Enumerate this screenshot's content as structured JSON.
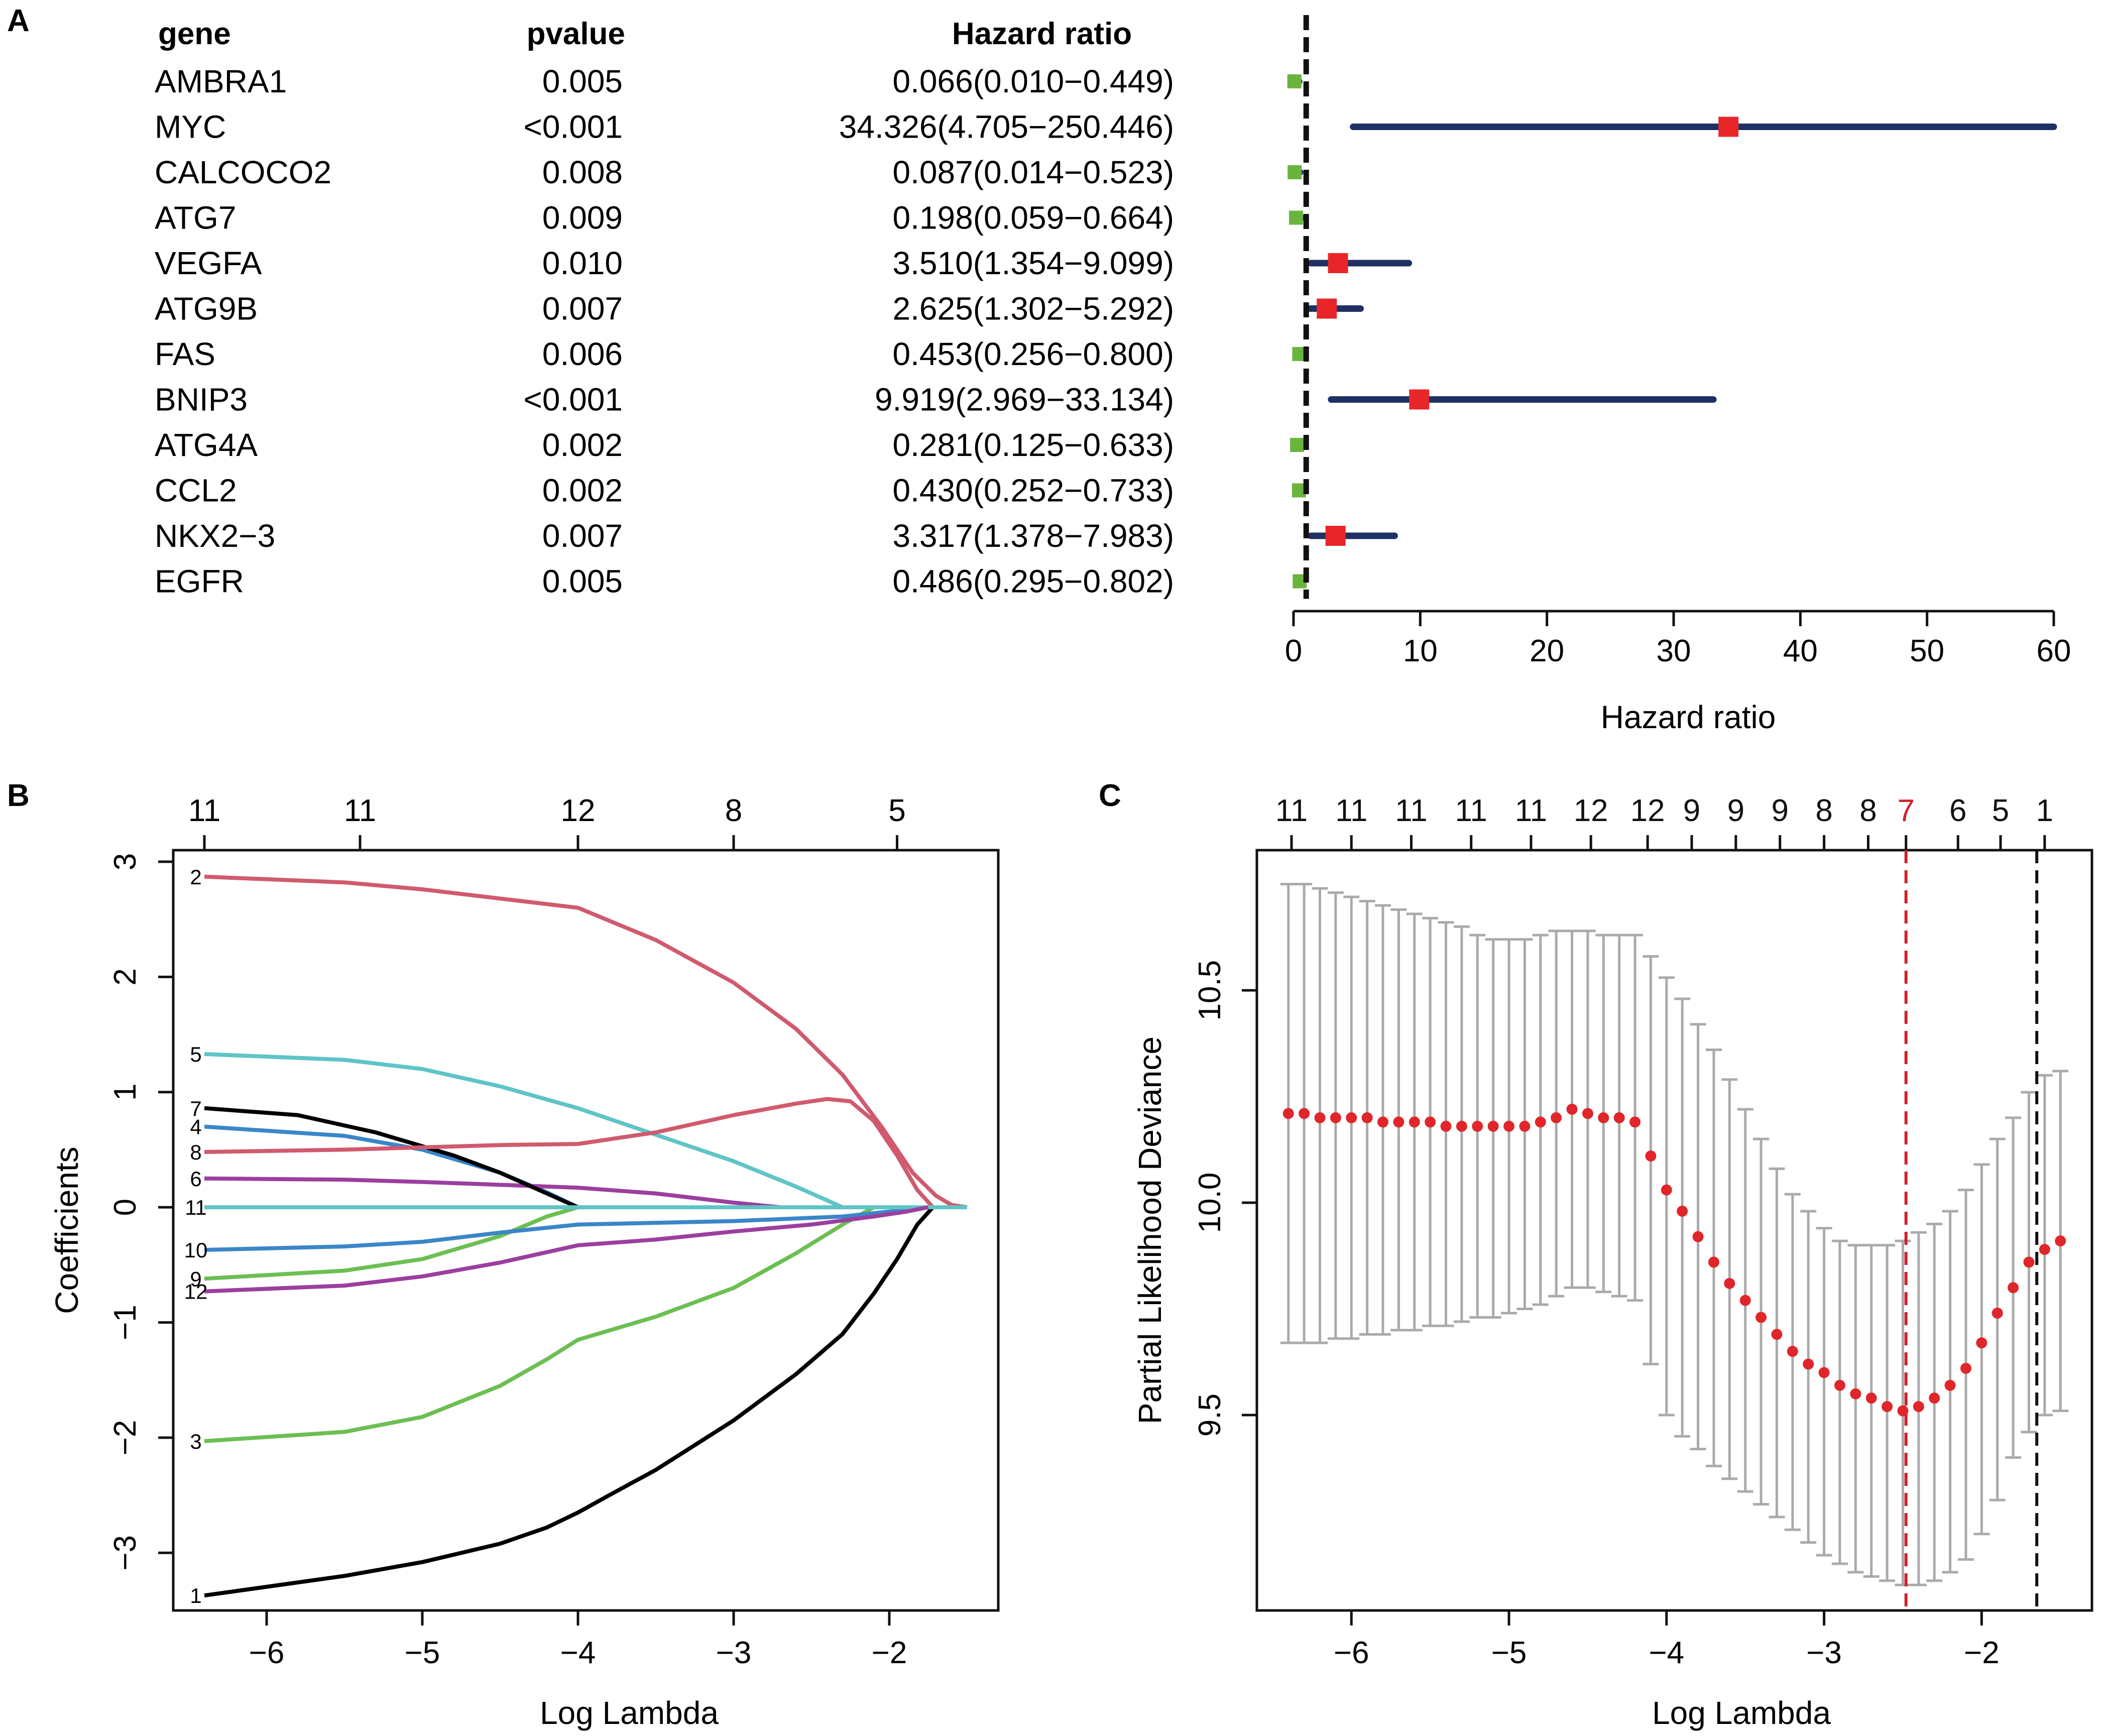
{
  "panels": {
    "a": "A",
    "b": "B",
    "c": "C"
  },
  "forest": {
    "headers": {
      "gene": "gene",
      "pvalue": "pvalue",
      "hr": "Hazard ratio"
    },
    "rows": [
      {
        "gene": "AMBRA1",
        "pvalue": "0.005",
        "hr_text": "0.066(0.010−0.449)",
        "hr": 0.066,
        "lo": 0.01,
        "hi": 0.449
      },
      {
        "gene": "MYC",
        "pvalue": "<0.001",
        "hr_text": "34.326(4.705−250.446)",
        "hr": 34.326,
        "lo": 4.705,
        "hi": 250.446
      },
      {
        "gene": "CALCOCO2",
        "pvalue": "0.008",
        "hr_text": "0.087(0.014−0.523)",
        "hr": 0.087,
        "lo": 0.014,
        "hi": 0.523
      },
      {
        "gene": "ATG7",
        "pvalue": "0.009",
        "hr_text": "0.198(0.059−0.664)",
        "hr": 0.198,
        "lo": 0.059,
        "hi": 0.664
      },
      {
        "gene": "VEGFA",
        "pvalue": "0.010",
        "hr_text": "3.510(1.354−9.099)",
        "hr": 3.51,
        "lo": 1.354,
        "hi": 9.099
      },
      {
        "gene": "ATG9B",
        "pvalue": "0.007",
        "hr_text": "2.625(1.302−5.292)",
        "hr": 2.625,
        "lo": 1.302,
        "hi": 5.292
      },
      {
        "gene": "FAS",
        "pvalue": "0.006",
        "hr_text": "0.453(0.256−0.800)",
        "hr": 0.453,
        "lo": 0.256,
        "hi": 0.8
      },
      {
        "gene": "BNIP3",
        "pvalue": "<0.001",
        "hr_text": "9.919(2.969−33.134)",
        "hr": 9.919,
        "lo": 2.969,
        "hi": 33.134
      },
      {
        "gene": "ATG4A",
        "pvalue": "0.002",
        "hr_text": "0.281(0.125−0.633)",
        "hr": 0.281,
        "lo": 0.125,
        "hi": 0.633
      },
      {
        "gene": "CCL2",
        "pvalue": "0.002",
        "hr_text": "0.430(0.252−0.733)",
        "hr": 0.43,
        "lo": 0.252,
        "hi": 0.733
      },
      {
        "gene": "NKX2−3",
        "pvalue": "0.007",
        "hr_text": "3.317(1.378−7.983)",
        "hr": 3.317,
        "lo": 1.378,
        "hi": 7.983
      },
      {
        "gene": "EGFR",
        "pvalue": "0.005",
        "hr_text": "0.486(0.295−0.802)",
        "hr": 0.486,
        "lo": 0.295,
        "hi": 0.802
      }
    ]
  },
  "chart_data": [
    {
      "type": "forest",
      "xlabel": "Hazard ratio",
      "xlim": [
        0,
        60
      ],
      "xticks": [
        0,
        10,
        20,
        30,
        40,
        50,
        60
      ],
      "reference_line": 1,
      "colors": {
        "risk": "#e8262a",
        "protective": "#6ab43e",
        "ci": "#1f3063",
        "ref": "#111111"
      }
    },
    {
      "type": "line",
      "xlabel": "Log Lambda",
      "ylabel": "Coefficients",
      "xlim": [
        -6.6,
        -1.3
      ],
      "ylim": [
        -3.5,
        3.1
      ],
      "xticks": [
        -6,
        -5,
        -4,
        -3,
        -2
      ],
      "yticks": [
        -3,
        -2,
        -1,
        0,
        1,
        2,
        3
      ],
      "top_axis": {
        "positions": [
          -6.4,
          -5.4,
          -4.0,
          -3.0,
          -1.95
        ],
        "labels": [
          "11",
          "11",
          "12",
          "8",
          "5"
        ]
      },
      "series": [
        {
          "name": "1",
          "color": "#000000",
          "points": [
            [
              -6.4,
              -3.37
            ],
            [
              -5.5,
              -3.2
            ],
            [
              -5.0,
              -3.08
            ],
            [
              -4.5,
              -2.92
            ],
            [
              -4.2,
              -2.78
            ],
            [
              -4.0,
              -2.65
            ],
            [
              -3.8,
              -2.5
            ],
            [
              -3.5,
              -2.28
            ],
            [
              -3.0,
              -1.85
            ],
            [
              -2.6,
              -1.45
            ],
            [
              -2.3,
              -1.1
            ],
            [
              -2.1,
              -0.75
            ],
            [
              -1.95,
              -0.45
            ],
            [
              -1.82,
              -0.15
            ],
            [
              -1.72,
              0
            ]
          ]
        },
        {
          "name": "2",
          "color": "#d05a6e",
          "points": [
            [
              -6.4,
              2.87
            ],
            [
              -5.5,
              2.82
            ],
            [
              -5.0,
              2.76
            ],
            [
              -4.5,
              2.68
            ],
            [
              -4.0,
              2.6
            ],
            [
              -3.5,
              2.32
            ],
            [
              -3.0,
              1.95
            ],
            [
              -2.6,
              1.55
            ],
            [
              -2.3,
              1.15
            ],
            [
              -2.05,
              0.7
            ],
            [
              -1.85,
              0.3
            ],
            [
              -1.7,
              0.1
            ],
            [
              -1.6,
              0.02
            ],
            [
              -1.5,
              0
            ]
          ]
        },
        {
          "name": "3",
          "color": "#6cbf52",
          "points": [
            [
              -6.4,
              -2.03
            ],
            [
              -5.5,
              -1.95
            ],
            [
              -5.0,
              -1.82
            ],
            [
              -4.5,
              -1.55
            ],
            [
              -4.2,
              -1.32
            ],
            [
              -4.0,
              -1.15
            ],
            [
              -3.5,
              -0.95
            ],
            [
              -3.0,
              -0.7
            ],
            [
              -2.6,
              -0.4
            ],
            [
              -2.3,
              -0.15
            ],
            [
              -2.1,
              0
            ]
          ]
        },
        {
          "name": "4",
          "color": "#3a86c8",
          "points": [
            [
              -6.4,
              0.7
            ],
            [
              -5.5,
              0.62
            ],
            [
              -5.0,
              0.5
            ],
            [
              -4.5,
              0.3
            ],
            [
              -4.2,
              0.13
            ],
            [
              -4.0,
              0
            ]
          ]
        },
        {
          "name": "5",
          "color": "#5fc4c6",
          "points": [
            [
              -6.4,
              1.33
            ],
            [
              -5.5,
              1.28
            ],
            [
              -5.0,
              1.2
            ],
            [
              -4.5,
              1.05
            ],
            [
              -4.0,
              0.86
            ],
            [
              -3.5,
              0.63
            ],
            [
              -3.0,
              0.4
            ],
            [
              -2.6,
              0.18
            ],
            [
              -2.3,
              0
            ]
          ]
        },
        {
          "name": "6",
          "color": "#9b3f9f",
          "points": [
            [
              -6.4,
              0.25
            ],
            [
              -5.5,
              0.24
            ],
            [
              -5.0,
              0.22
            ],
            [
              -4.0,
              0.17
            ],
            [
              -3.5,
              0.12
            ],
            [
              -3.0,
              0.04
            ],
            [
              -2.7,
              0
            ]
          ]
        },
        {
          "name": "7",
          "color": "#000000",
          "points": [
            [
              -6.4,
              0.86
            ],
            [
              -5.8,
              0.8
            ],
            [
              -5.3,
              0.65
            ],
            [
              -4.8,
              0.45
            ],
            [
              -4.5,
              0.3
            ],
            [
              -4.2,
              0.12
            ],
            [
              -4.0,
              0
            ]
          ]
        },
        {
          "name": "8",
          "color": "#d05a6e",
          "points": [
            [
              -6.4,
              0.48
            ],
            [
              -5.5,
              0.5
            ],
            [
              -5.0,
              0.52
            ],
            [
              -4.5,
              0.54
            ],
            [
              -4.0,
              0.55
            ],
            [
              -3.5,
              0.65
            ],
            [
              -3.0,
              0.8
            ],
            [
              -2.6,
              0.9
            ],
            [
              -2.4,
              0.94
            ],
            [
              -2.25,
              0.92
            ],
            [
              -2.1,
              0.75
            ],
            [
              -1.95,
              0.45
            ],
            [
              -1.82,
              0.15
            ],
            [
              -1.72,
              0
            ]
          ]
        },
        {
          "name": "9",
          "color": "#6cbf52",
          "points": [
            [
              -6.4,
              -0.62
            ],
            [
              -5.5,
              -0.55
            ],
            [
              -5.0,
              -0.45
            ],
            [
              -4.5,
              -0.25
            ],
            [
              -4.2,
              -0.08
            ],
            [
              -4.0,
              0
            ]
          ]
        },
        {
          "name": "10",
          "color": "#3a86c8",
          "points": [
            [
              -6.4,
              -0.37
            ],
            [
              -5.5,
              -0.34
            ],
            [
              -5.0,
              -0.3
            ],
            [
              -4.5,
              -0.22
            ],
            [
              -4.0,
              -0.15
            ],
            [
              -3.0,
              -0.12
            ],
            [
              -2.3,
              -0.08
            ],
            [
              -1.95,
              -0.03
            ],
            [
              -1.75,
              0
            ]
          ]
        },
        {
          "name": "11",
          "color": "#5fc4c6",
          "points": [
            [
              -6.4,
              0.0
            ],
            [
              -3.0,
              0.0
            ],
            [
              -1.5,
              0.0
            ]
          ]
        },
        {
          "name": "12",
          "color": "#9b3f9f",
          "points": [
            [
              -6.4,
              -0.73
            ],
            [
              -5.5,
              -0.68
            ],
            [
              -5.0,
              -0.6
            ],
            [
              -4.5,
              -0.48
            ],
            [
              -4.0,
              -0.33
            ],
            [
              -3.5,
              -0.28
            ],
            [
              -3.0,
              -0.21
            ],
            [
              -2.5,
              -0.15
            ],
            [
              -2.1,
              -0.08
            ],
            [
              -1.9,
              -0.04
            ],
            [
              -1.75,
              0
            ]
          ]
        }
      ]
    },
    {
      "type": "scatter",
      "xlabel": "Log Lambda",
      "ylabel": "Partial Likelihood Deviance",
      "xlim": [
        -6.6,
        -1.3
      ],
      "ylim": [
        9.04,
        10.83
      ],
      "xticks": [
        -6,
        -5,
        -4,
        -3,
        -2
      ],
      "yticks": [
        9.5,
        10.0,
        10.5
      ],
      "ytick_labels": [
        "9.5",
        "10.0",
        "10.5"
      ],
      "vlines": [
        {
          "x": -2.48,
          "color": "#d0212a"
        },
        {
          "x": -1.65,
          "color": "#111111"
        }
      ],
      "top_axis": {
        "positions": [
          -6.38,
          -6.0,
          -5.62,
          -5.24,
          -4.86,
          -4.48,
          -4.12,
          -3.84,
          -3.56,
          -3.28,
          -3.0,
          -2.72,
          -2.48,
          -2.15,
          -1.88,
          -1.6
        ],
        "labels": [
          "11",
          "11",
          "11",
          "11",
          "11",
          "12",
          "12",
          "9",
          "9",
          "9",
          "8",
          "8",
          "7",
          "6",
          "5",
          "1"
        ],
        "highlight_index": 12,
        "highlight_color": "#d0212a"
      },
      "point_color": "#e0262a",
      "errorbar_color": "#aaaaaa",
      "x": [
        -6.4,
        -6.3,
        -6.2,
        -6.1,
        -6.0,
        -5.9,
        -5.8,
        -5.7,
        -5.6,
        -5.5,
        -5.4,
        -5.3,
        -5.2,
        -5.1,
        -5.0,
        -4.9,
        -4.8,
        -4.7,
        -4.6,
        -4.5,
        -4.4,
        -4.3,
        -4.2,
        -4.1,
        -4.0,
        -3.9,
        -3.8,
        -3.7,
        -3.6,
        -3.5,
        -3.4,
        -3.3,
        -3.2,
        -3.1,
        -3.0,
        -2.9,
        -2.8,
        -2.7,
        -2.6,
        -2.5,
        -2.4,
        -2.3,
        -2.2,
        -2.1,
        -2.0,
        -1.9,
        -1.8,
        -1.7,
        -1.6,
        -1.5
      ],
      "y": [
        10.21,
        10.21,
        10.2,
        10.2,
        10.2,
        10.2,
        10.19,
        10.19,
        10.19,
        10.19,
        10.18,
        10.18,
        10.18,
        10.18,
        10.18,
        10.18,
        10.19,
        10.2,
        10.22,
        10.21,
        10.2,
        10.2,
        10.19,
        10.11,
        10.03,
        9.98,
        9.92,
        9.86,
        9.81,
        9.77,
        9.73,
        9.69,
        9.65,
        9.62,
        9.6,
        9.57,
        9.55,
        9.54,
        9.52,
        9.51,
        9.52,
        9.54,
        9.57,
        9.61,
        9.67,
        9.74,
        9.8,
        9.86,
        9.89,
        9.91
      ],
      "lower": [
        9.67,
        9.67,
        9.67,
        9.68,
        9.68,
        9.69,
        9.69,
        9.7,
        9.7,
        9.71,
        9.71,
        9.72,
        9.73,
        9.73,
        9.74,
        9.75,
        9.76,
        9.78,
        9.8,
        9.8,
        9.79,
        9.78,
        9.77,
        9.62,
        9.5,
        9.45,
        9.42,
        9.38,
        9.35,
        9.32,
        9.29,
        9.26,
        9.23,
        9.2,
        9.17,
        9.15,
        9.13,
        9.12,
        9.11,
        9.1,
        9.1,
        9.11,
        9.13,
        9.16,
        9.22,
        9.3,
        9.4,
        9.46,
        9.5,
        9.51
      ],
      "upper": [
        10.75,
        10.75,
        10.74,
        10.73,
        10.72,
        10.71,
        10.7,
        10.69,
        10.68,
        10.67,
        10.66,
        10.65,
        10.63,
        10.62,
        10.62,
        10.62,
        10.63,
        10.64,
        10.64,
        10.64,
        10.63,
        10.63,
        10.63,
        10.58,
        10.53,
        10.48,
        10.42,
        10.36,
        10.29,
        10.22,
        10.15,
        10.08,
        10.02,
        9.98,
        9.94,
        9.91,
        9.9,
        9.9,
        9.9,
        9.91,
        9.93,
        9.95,
        9.98,
        10.03,
        10.09,
        10.15,
        10.2,
        10.26,
        10.3,
        10.31
      ]
    }
  ]
}
